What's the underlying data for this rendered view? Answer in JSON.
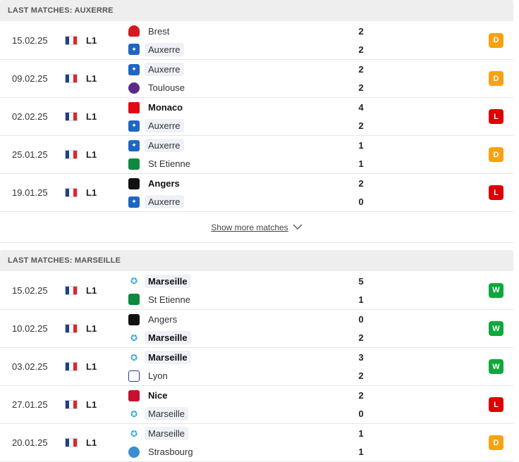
{
  "sections": [
    {
      "title": "LAST MATCHES: AUXERRE",
      "matches": [
        {
          "date": "15.02.25",
          "league": "L1",
          "home": "Brest",
          "away": "Auxerre",
          "home_score": "2",
          "away_score": "2",
          "result": "D",
          "home_bold": false,
          "away_bold": false,
          "home_hl": false,
          "away_hl": true,
          "home_crest": "brest-crest",
          "away_crest": "auxerre-crest"
        },
        {
          "date": "09.02.25",
          "league": "L1",
          "home": "Auxerre",
          "away": "Toulouse",
          "home_score": "2",
          "away_score": "2",
          "result": "D",
          "home_bold": false,
          "away_bold": false,
          "home_hl": true,
          "away_hl": false,
          "home_crest": "auxerre-crest",
          "away_crest": "toulouse-crest"
        },
        {
          "date": "02.02.25",
          "league": "L1",
          "home": "Monaco",
          "away": "Auxerre",
          "home_score": "4",
          "away_score": "2",
          "result": "L",
          "home_bold": true,
          "away_bold": false,
          "home_hl": false,
          "away_hl": true,
          "home_crest": "monaco-crest",
          "away_crest": "auxerre-crest"
        },
        {
          "date": "25.01.25",
          "league": "L1",
          "home": "Auxerre",
          "away": "St Etienne",
          "home_score": "1",
          "away_score": "1",
          "result": "D",
          "home_bold": false,
          "away_bold": false,
          "home_hl": true,
          "away_hl": false,
          "home_crest": "auxerre-crest",
          "away_crest": "st-etienne-crest"
        },
        {
          "date": "19.01.25",
          "league": "L1",
          "home": "Angers",
          "away": "Auxerre",
          "home_score": "2",
          "away_score": "0",
          "result": "L",
          "home_bold": true,
          "away_bold": false,
          "home_hl": false,
          "away_hl": true,
          "home_crest": "angers-crest",
          "away_crest": "auxerre-crest"
        }
      ],
      "show_more": "Show more matches"
    },
    {
      "title": "LAST MATCHES: MARSEILLE",
      "matches": [
        {
          "date": "15.02.25",
          "league": "L1",
          "home": "Marseille",
          "away": "St Etienne",
          "home_score": "5",
          "away_score": "1",
          "result": "W",
          "home_bold": true,
          "away_bold": false,
          "home_hl": true,
          "away_hl": false,
          "home_crest": "marseille-crest",
          "away_crest": "st-etienne-crest"
        },
        {
          "date": "10.02.25",
          "league": "L1",
          "home": "Angers",
          "away": "Marseille",
          "home_score": "0",
          "away_score": "2",
          "result": "W",
          "home_bold": false,
          "away_bold": true,
          "home_hl": false,
          "away_hl": true,
          "home_crest": "angers-crest",
          "away_crest": "marseille-crest"
        },
        {
          "date": "03.02.25",
          "league": "L1",
          "home": "Marseille",
          "away": "Lyon",
          "home_score": "3",
          "away_score": "2",
          "result": "W",
          "home_bold": true,
          "away_bold": false,
          "home_hl": true,
          "away_hl": false,
          "home_crest": "marseille-crest",
          "away_crest": "lyon-crest"
        },
        {
          "date": "27.01.25",
          "league": "L1",
          "home": "Nice",
          "away": "Marseille",
          "home_score": "2",
          "away_score": "0",
          "result": "L",
          "home_bold": true,
          "away_bold": false,
          "home_hl": false,
          "away_hl": true,
          "home_crest": "nice-crest",
          "away_crest": "marseille-crest"
        },
        {
          "date": "20.01.25",
          "league": "L1",
          "home": "Marseille",
          "away": "Strasbourg",
          "home_score": "1",
          "away_score": "1",
          "result": "D",
          "home_bold": false,
          "away_bold": false,
          "home_hl": true,
          "away_hl": false,
          "home_crest": "marseille-crest",
          "away_crest": "strasbourg-crest"
        }
      ]
    }
  ],
  "colors": {
    "draw": "#f7a211",
    "loss": "#dc0000",
    "win": "#0fa83c",
    "header_bg": "#eeeeee",
    "team_highlight": "#eef1f7"
  },
  "icons": {
    "flag": "france-flag-icon",
    "chevron": "chevron-down-icon"
  }
}
